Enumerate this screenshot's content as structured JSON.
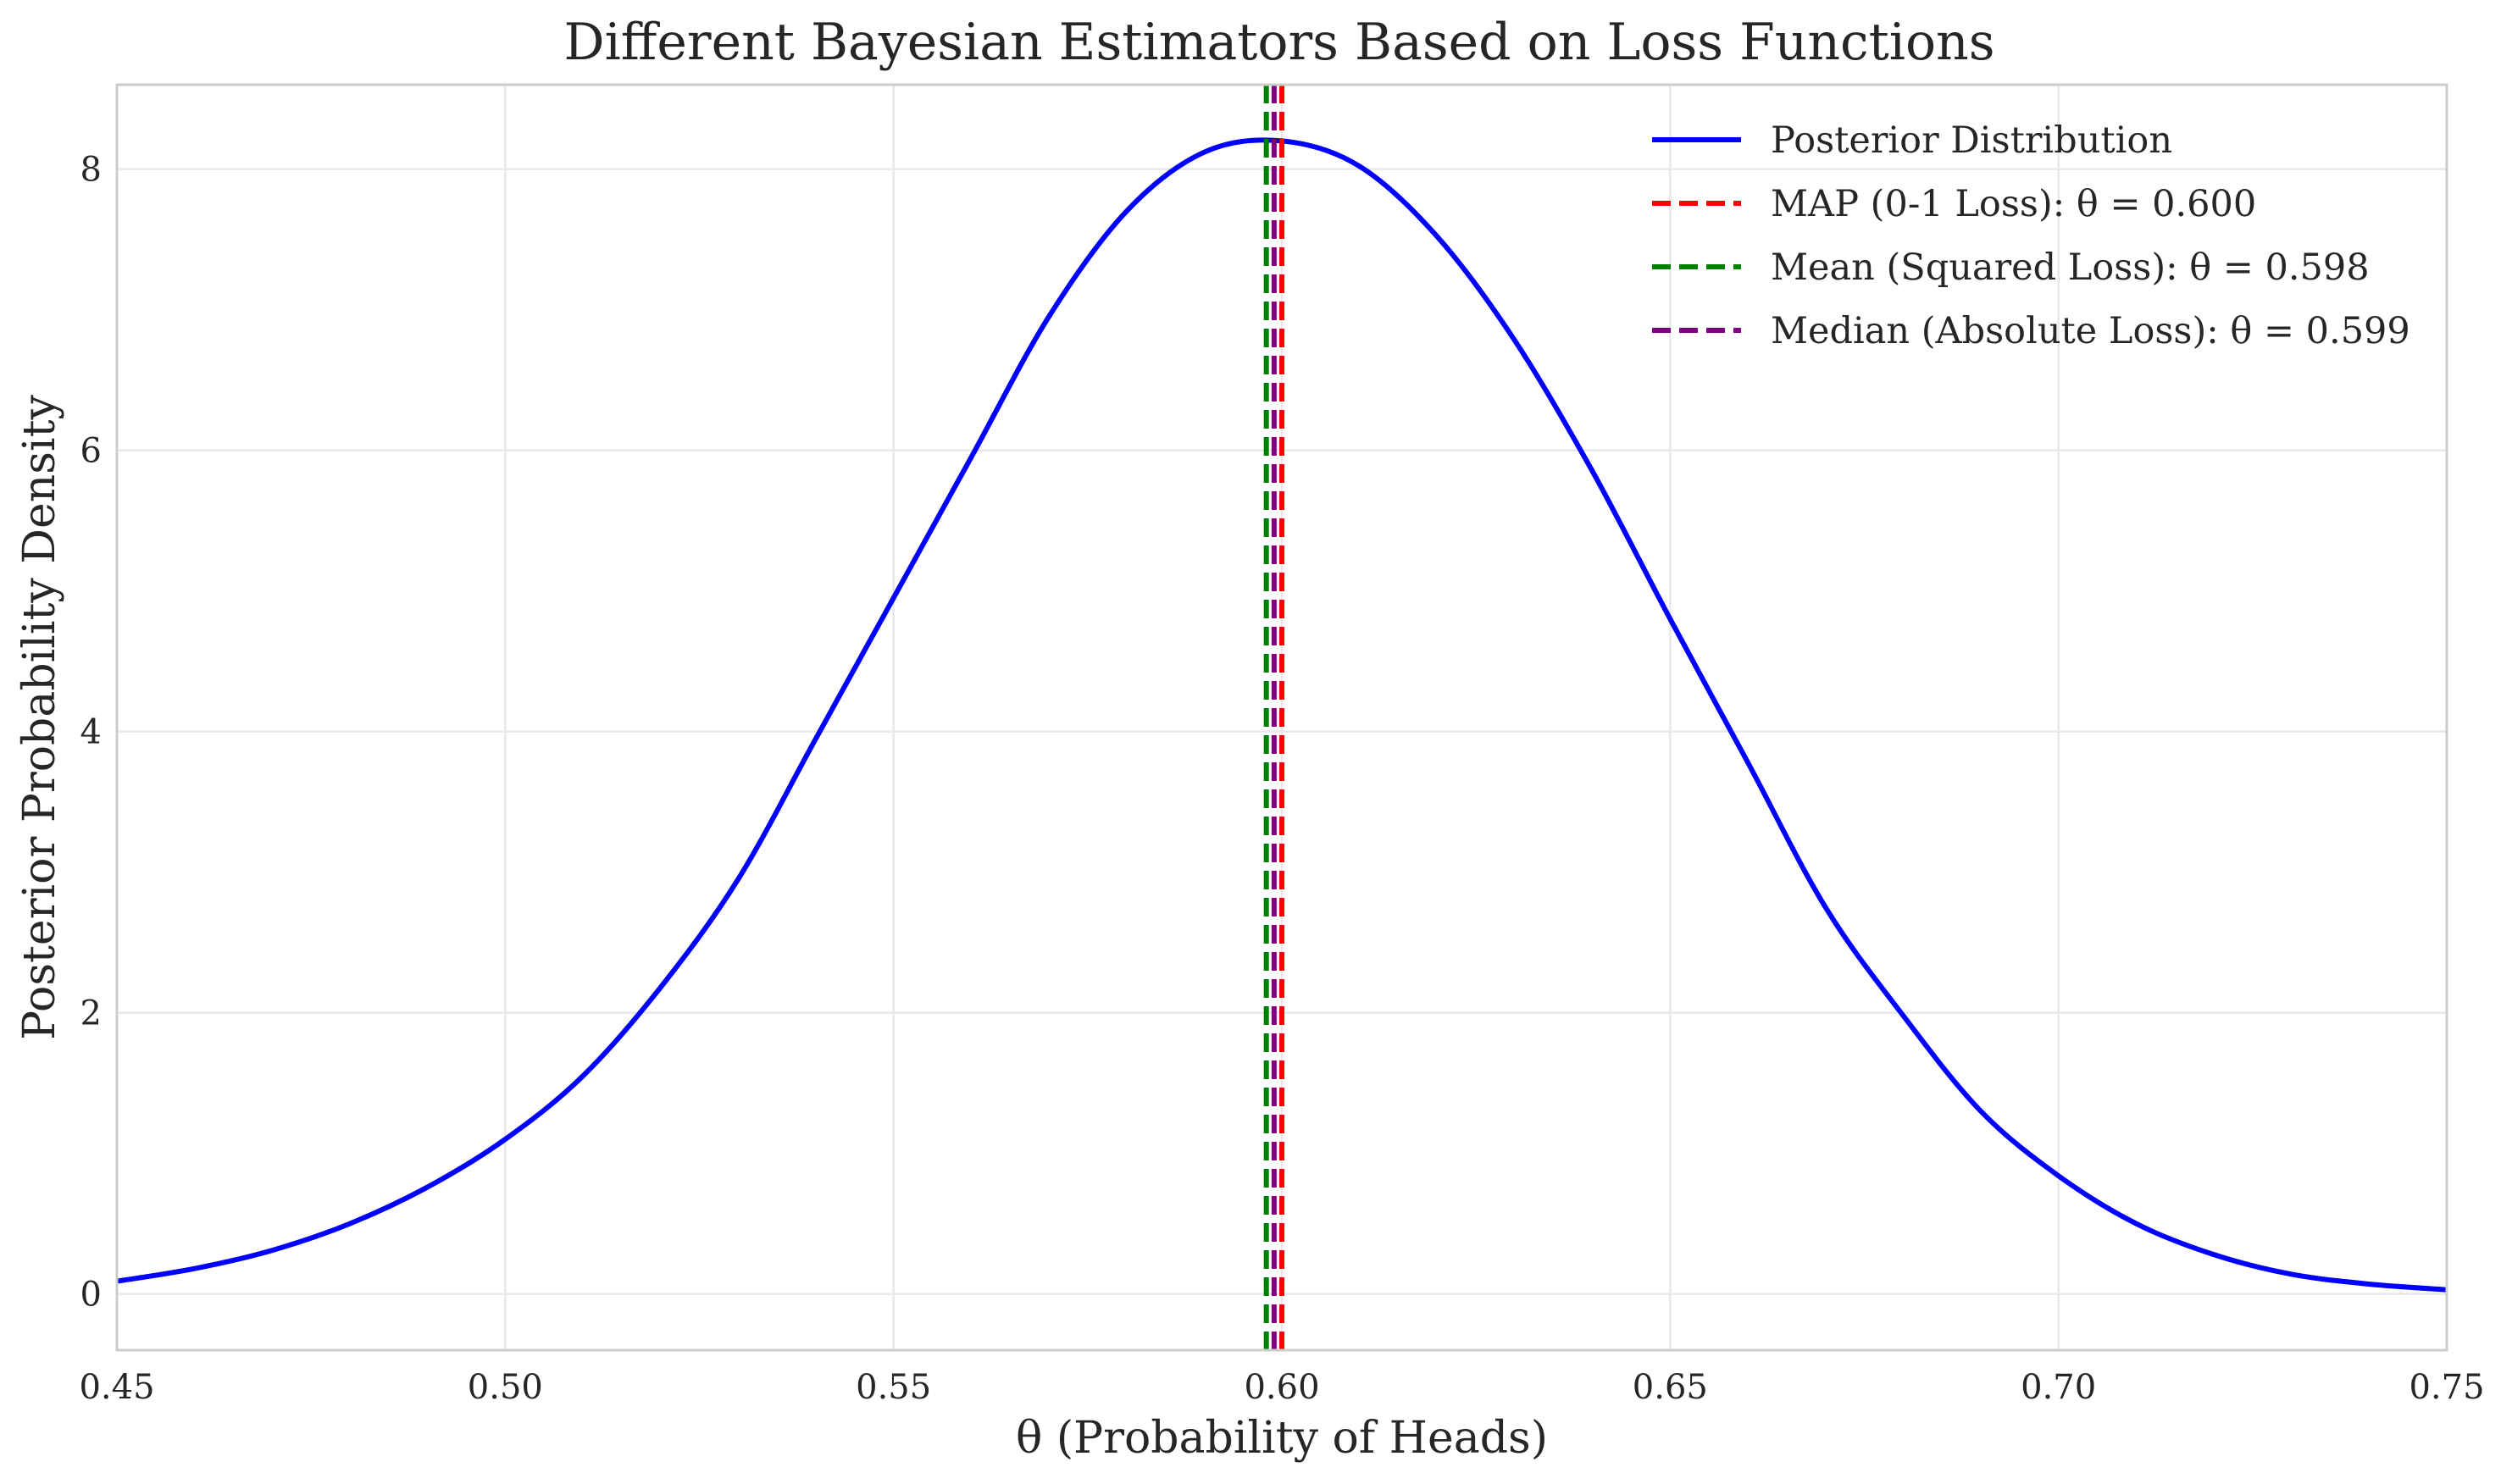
{
  "chart_data": {
    "type": "line",
    "title": "Different Bayesian Estimators Based on Loss Functions",
    "xlabel": "θ (Probability of Heads)",
    "ylabel": "Posterior Probability Density",
    "xlim": [
      0.45,
      0.75
    ],
    "ylim": [
      -0.4,
      8.6
    ],
    "x_ticks": [
      0.45,
      0.5,
      0.55,
      0.6,
      0.65,
      0.7,
      0.75
    ],
    "x_tick_labels": [
      "0.45",
      "0.50",
      "0.55",
      "0.60",
      "0.65",
      "0.70",
      "0.75"
    ],
    "y_ticks": [
      0,
      2,
      4,
      6,
      8
    ],
    "y_tick_labels": [
      "0",
      "2",
      "4",
      "6",
      "8"
    ],
    "grid": true,
    "legend_position": "top-right",
    "series": [
      {
        "name": "Posterior Distribution",
        "kind": "line",
        "color": "#0000ff",
        "x": [
          0.45,
          0.46,
          0.47,
          0.48,
          0.49,
          0.5,
          0.51,
          0.52,
          0.53,
          0.54,
          0.55,
          0.56,
          0.57,
          0.58,
          0.59,
          0.6,
          0.61,
          0.62,
          0.63,
          0.64,
          0.65,
          0.66,
          0.67,
          0.68,
          0.69,
          0.7,
          0.71,
          0.72,
          0.73,
          0.74,
          0.75
        ],
        "y": [
          0.09,
          0.18,
          0.31,
          0.5,
          0.76,
          1.1,
          1.55,
          2.18,
          2.95,
          3.95,
          4.95,
          5.95,
          6.95,
          7.7,
          8.12,
          8.2,
          8.02,
          7.52,
          6.78,
          5.85,
          4.8,
          3.78,
          2.75,
          1.98,
          1.3,
          0.84,
          0.5,
          0.28,
          0.14,
          0.07,
          0.03
        ]
      },
      {
        "name": "MAP (0-1 Loss): θ = 0.600",
        "kind": "vline",
        "x": 0.6,
        "color": "#ff0000"
      },
      {
        "name": "Mean (Squared Loss): θ = 0.598",
        "kind": "vline",
        "x": 0.598,
        "color": "#008000"
      },
      {
        "name": "Median (Absolute Loss): θ = 0.599",
        "kind": "vline",
        "x": 0.599,
        "color": "#800080"
      }
    ]
  }
}
